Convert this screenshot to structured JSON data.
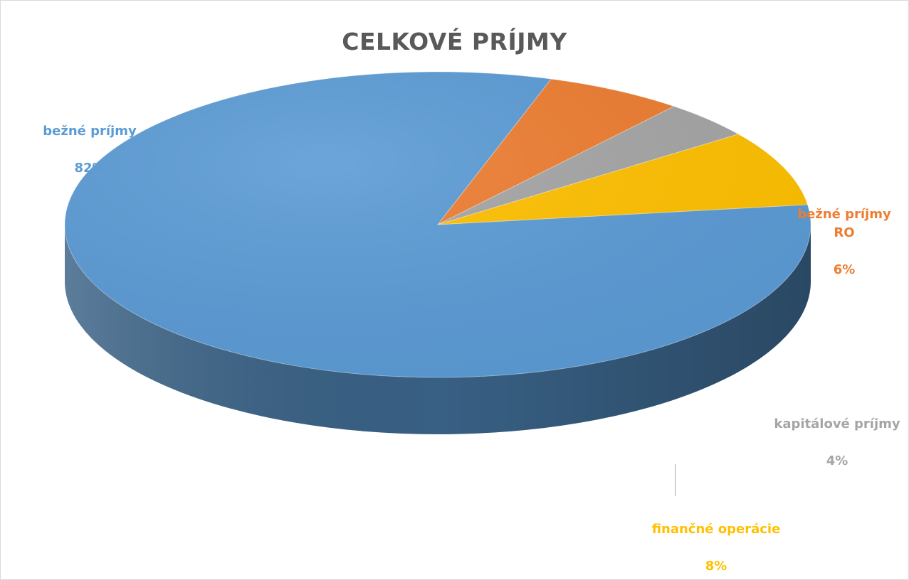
{
  "chart_data": {
    "type": "pie",
    "title": "CELKOVÉ PRÍJMY",
    "style": "3d",
    "slices": [
      {
        "name": "bežné príjmy",
        "label": "bežné príjmy",
        "value": 82,
        "value_text": "82%",
        "color": "#5B9BD5"
      },
      {
        "name": "bežné príjmy RO",
        "label": "bežné príjmy\nRO",
        "value": 6,
        "value_text": "6%",
        "color": "#ED7D31"
      },
      {
        "name": "kapitálové príjmy",
        "label": "kapitálové príjmy",
        "value": 4,
        "value_text": "4%",
        "color": "#A5A5A5"
      },
      {
        "name": "finančné operácie",
        "label": "finančné operácie",
        "value": 8,
        "value_text": "8%",
        "color": "#FFC000"
      }
    ]
  }
}
